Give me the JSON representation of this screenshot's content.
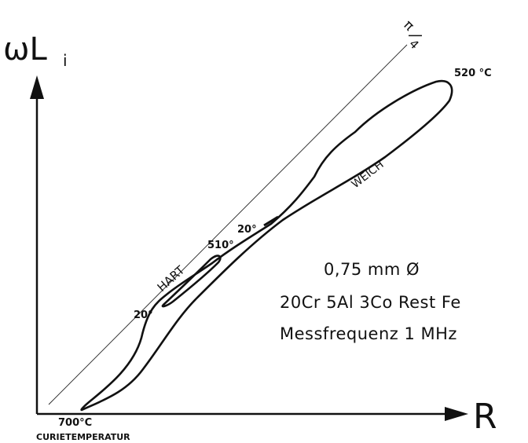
{
  "axes": {
    "y_label": "ωL",
    "y_label_sub": "i",
    "x_label": "R"
  },
  "reference_line": {
    "label_num": "π",
    "label_den": "4"
  },
  "annotations": {
    "temp_520": "520 °C",
    "temp_510": "510°",
    "temp_20_upper": "20°",
    "temp_20_lower": "20°",
    "temp_700": "700°C",
    "curie": "CURIETEMPERATUR",
    "hart": "HART",
    "weich": "WEICH"
  },
  "spec": {
    "diameter": "0,75 mm  Ø",
    "composition": "20Cr  5Al  3Co  Rest Fe",
    "frequency": "Messfrequenz  1 MHz"
  }
}
